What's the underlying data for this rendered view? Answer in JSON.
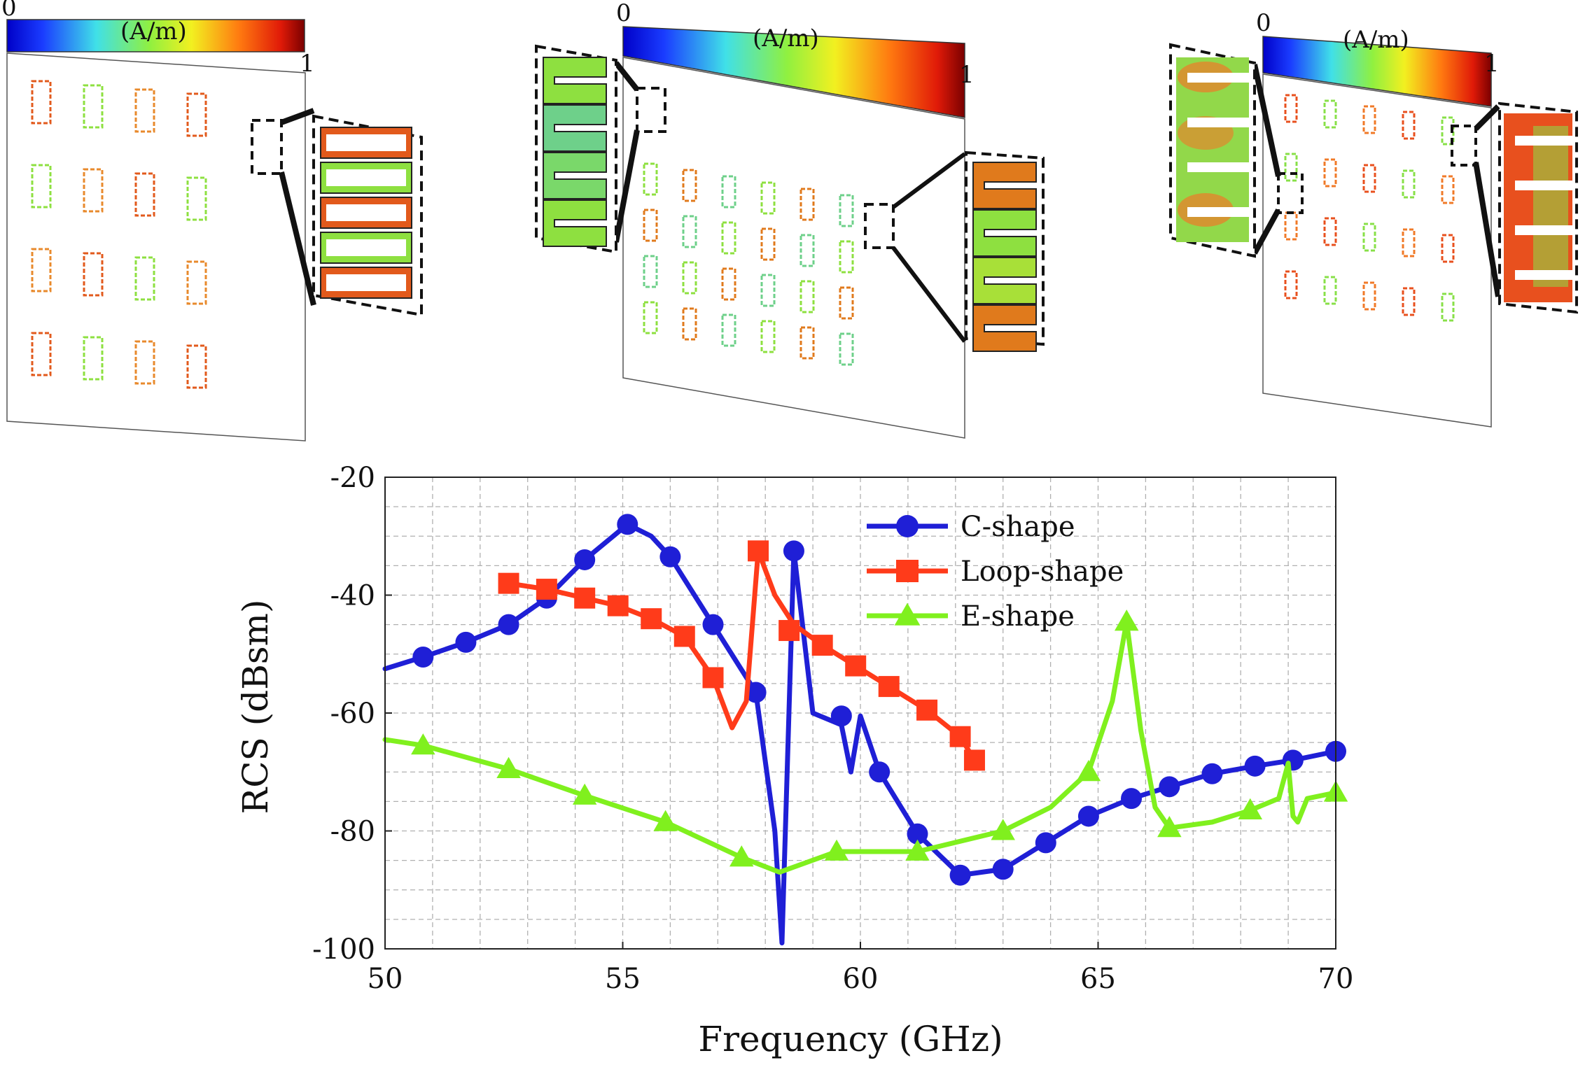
{
  "panels": [
    {
      "colorbar_min": "0",
      "colorbar_max": "1",
      "colorbar_unit": "(A/m)"
    },
    {
      "colorbar_min": "0",
      "colorbar_max": "1",
      "colorbar_unit": "(A/m)"
    },
    {
      "colorbar_min": "0",
      "colorbar_max": "1",
      "colorbar_unit": "(A/m)"
    }
  ],
  "colors": {
    "c_shape": "#1f1fd6",
    "loop_shape": "#ff3b1a",
    "e_shape": "#80f01e",
    "grid": "#b0b0b0"
  },
  "chart_data": {
    "type": "line",
    "title": "",
    "xlabel": "Frequency (GHz)",
    "ylabel": "RCS (dBsm)",
    "xlim": [
      50,
      70
    ],
    "ylim": [
      -100,
      -20
    ],
    "xticks": [
      50,
      55,
      60,
      65,
      70
    ],
    "yticks": [
      -100,
      -80,
      -60,
      -40,
      -20
    ],
    "x_tick_labels": [
      "50",
      "55",
      "60",
      "65",
      "70"
    ],
    "y_tick_labels": [
      "-100",
      "-80",
      "-60",
      "-40",
      "-20"
    ],
    "grid": true,
    "legend_position": "top-right",
    "series": [
      {
        "name": "C-shape",
        "color": "#1f1fd6",
        "marker": "circle",
        "x": [
          50.0,
          50.8,
          51.7,
          52.6,
          53.4,
          54.2,
          55.1,
          55.6,
          56.0,
          56.9,
          57.8,
          58.2,
          58.35,
          58.6,
          59.0,
          59.6,
          59.8,
          60.0,
          60.4,
          61.2,
          62.1,
          63.0,
          63.9,
          64.8,
          65.7,
          66.5,
          67.4,
          68.3,
          69.1,
          70.0
        ],
        "y": [
          -52.5,
          -50.5,
          -48,
          -45,
          -40.5,
          -34,
          -28,
          -30,
          -33.5,
          -45,
          -56.5,
          -80,
          -99,
          -32.5,
          -60,
          -62,
          -70,
          -60.5,
          -70,
          -80.5,
          -87.5,
          -86.5,
          -82,
          -77.5,
          -74.5,
          -72.5,
          -70.3,
          -69,
          -68,
          -66.5
        ],
        "markers_x": [
          50.8,
          51.7,
          52.6,
          53.4,
          54.2,
          55.1,
          56.0,
          56.9,
          57.8,
          58.6,
          59.6,
          60.4,
          61.2,
          62.1,
          63.0,
          63.9,
          64.8,
          65.7,
          66.5,
          67.4,
          68.3,
          69.1,
          70.0
        ],
        "markers_y": [
          -50.5,
          -48,
          -45,
          -40.5,
          -34,
          -28,
          -33.5,
          -45,
          -56.5,
          -32.5,
          -60.5,
          -70,
          -80.5,
          -87.5,
          -86.5,
          -82,
          -77.5,
          -74.5,
          -72.5,
          -70.3,
          -69,
          -68,
          -66.5
        ]
      },
      {
        "name": "Loop-shape",
        "color": "#ff3b1a",
        "marker": "square",
        "x": [
          52.6,
          53.4,
          54.2,
          54.9,
          55.6,
          56.3,
          56.9,
          57.3,
          57.6,
          57.85,
          58.2,
          58.6,
          59.2,
          59.9,
          60.6,
          61.4,
          62.1,
          62.4
        ],
        "y": [
          -38,
          -39,
          -40.5,
          -41.8,
          -44,
          -47,
          -54,
          -62.5,
          -58,
          -32.5,
          -40,
          -45,
          -48.5,
          -52,
          -55.5,
          -59.5,
          -64,
          -68
        ],
        "markers_x": [
          52.6,
          53.4,
          54.2,
          54.9,
          55.6,
          56.3,
          56.9,
          57.85,
          58.5,
          59.2,
          59.9,
          60.6,
          61.4,
          62.1,
          62.4
        ],
        "markers_y": [
          -38,
          -39,
          -40.5,
          -41.8,
          -44,
          -47,
          -54,
          -32.5,
          -46,
          -48.5,
          -52,
          -55.5,
          -59.5,
          -64,
          -68
        ]
      },
      {
        "name": "E-shape",
        "color": "#80f01e",
        "marker": "triangle",
        "x": [
          50.0,
          50.8,
          52.6,
          54.2,
          55.9,
          57.5,
          58.3,
          59.5,
          61.2,
          63.0,
          64.0,
          64.8,
          65.3,
          65.6,
          65.9,
          66.2,
          66.5,
          67.4,
          68.2,
          68.8,
          69.0,
          69.1,
          69.2,
          69.4,
          70.0
        ],
        "y": [
          -64.5,
          -65.5,
          -69.5,
          -74,
          -78.5,
          -84.5,
          -87,
          -83.5,
          -83.5,
          -80,
          -76,
          -70,
          -58,
          -44.5,
          -63,
          -76,
          -79.5,
          -78.5,
          -76.5,
          -74.5,
          -68.5,
          -77.5,
          -78.5,
          -74.5,
          -73.5
        ],
        "markers_x": [
          50.8,
          52.6,
          54.2,
          55.9,
          57.5,
          59.5,
          61.2,
          63.0,
          64.8,
          65.6,
          66.5,
          68.2,
          70.0
        ],
        "markers_y": [
          -65.5,
          -69.5,
          -74,
          -78.5,
          -84.5,
          -83.5,
          -83.5,
          -80,
          -70,
          -44.5,
          -79.5,
          -76.5,
          -73.5
        ]
      }
    ]
  }
}
